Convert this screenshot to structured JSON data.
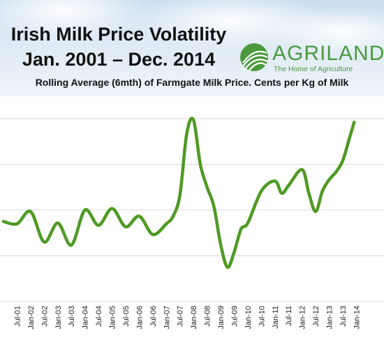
{
  "header": {
    "title_line1": "Irish Milk Price Volatility",
    "title_line2": "Jan. 2001 – Dec. 2014",
    "subtitle": "Rolling Average (6mth) of Farmgate Milk Price. Cents per Kg of Milk"
  },
  "logo": {
    "name": "AGRILAND",
    "tagline": "The Home of Agriculture",
    "icon": "agriland-swirl-logo",
    "color": "#4a9a3c"
  },
  "colors": {
    "series": "#4e9a23",
    "grid": "#d9d9d9",
    "header_top": "#c9def0",
    "header_bottom": "#eef4fa"
  },
  "chart_data": {
    "type": "line",
    "title": "Irish Milk Price Volatility Jan. 2001 – Dec. 2014",
    "subtitle": "Rolling Average (6mth) of Farmgate Milk Price. Cents per Kg of Milk",
    "grid": "horizontal",
    "x_tick_labels": [
      "Jul-01",
      "Jan-02",
      "Jul-02",
      "Jan-03",
      "Jul-03",
      "Jan-04",
      "Jul-04",
      "Jan-05",
      "Jul-05",
      "Jan-06",
      "Jul-06",
      "Jan-07",
      "Jul-07",
      "Jan-08",
      "Jul-08",
      "Jan-09",
      "Jul-09",
      "Jan-10",
      "Jul-10",
      "Jan-11",
      "Jul-11",
      "Jan-12",
      "Jul-12",
      "Jan-13",
      "Jul-13",
      "Jan-14"
    ],
    "x_range": [
      "Jan-01",
      "Dec-14"
    ],
    "y_range": [
      18,
      44
    ],
    "y_ticks": [
      18,
      24,
      30,
      36,
      42
    ],
    "y_tick_labels_visible": false,
    "series": [
      {
        "points": [
          [
            "Jan-01",
            28.5
          ],
          [
            "Jul-01",
            28.2
          ],
          [
            "Jan-02",
            29.8
          ],
          [
            "Jul-02",
            25.8
          ],
          [
            "Jan-03",
            28.3
          ],
          [
            "Jul-03",
            25.4
          ],
          [
            "Jan-04",
            30.0
          ],
          [
            "Jul-04",
            28.0
          ],
          [
            "Jan-05",
            30.2
          ],
          [
            "Jul-05",
            27.8
          ],
          [
            "Jan-06",
            29.2
          ],
          [
            "Jul-06",
            26.8
          ],
          [
            "Jan-07",
            28.2
          ],
          [
            "Apr-07",
            29.2
          ],
          [
            "Jul-07",
            32.0
          ],
          [
            "Oct-07",
            40.0
          ],
          [
            "Jan-08",
            41.8
          ],
          [
            "Apr-08",
            36.0
          ],
          [
            "Jul-08",
            33.0
          ],
          [
            "Oct-08",
            30.5
          ],
          [
            "Jan-09",
            25.5
          ],
          [
            "Apr-09",
            22.5
          ],
          [
            "Jul-09",
            24.5
          ],
          [
            "Oct-09",
            27.5
          ],
          [
            "Jan-10",
            28.3
          ],
          [
            "Jul-10",
            32.5
          ],
          [
            "Jan-11",
            33.8
          ],
          [
            "Apr-11",
            32.2
          ],
          [
            "Jul-11",
            33.2
          ],
          [
            "Jan-12",
            35.3
          ],
          [
            "Apr-12",
            32.2
          ],
          [
            "Jul-12",
            29.8
          ],
          [
            "Oct-12",
            32.5
          ],
          [
            "Jan-13",
            34.0
          ],
          [
            "Apr-13",
            35.0
          ],
          [
            "Jul-13",
            36.5
          ],
          [
            "Oct-13",
            39.5
          ],
          [
            "Dec-13",
            41.5
          ]
        ]
      }
    ]
  }
}
